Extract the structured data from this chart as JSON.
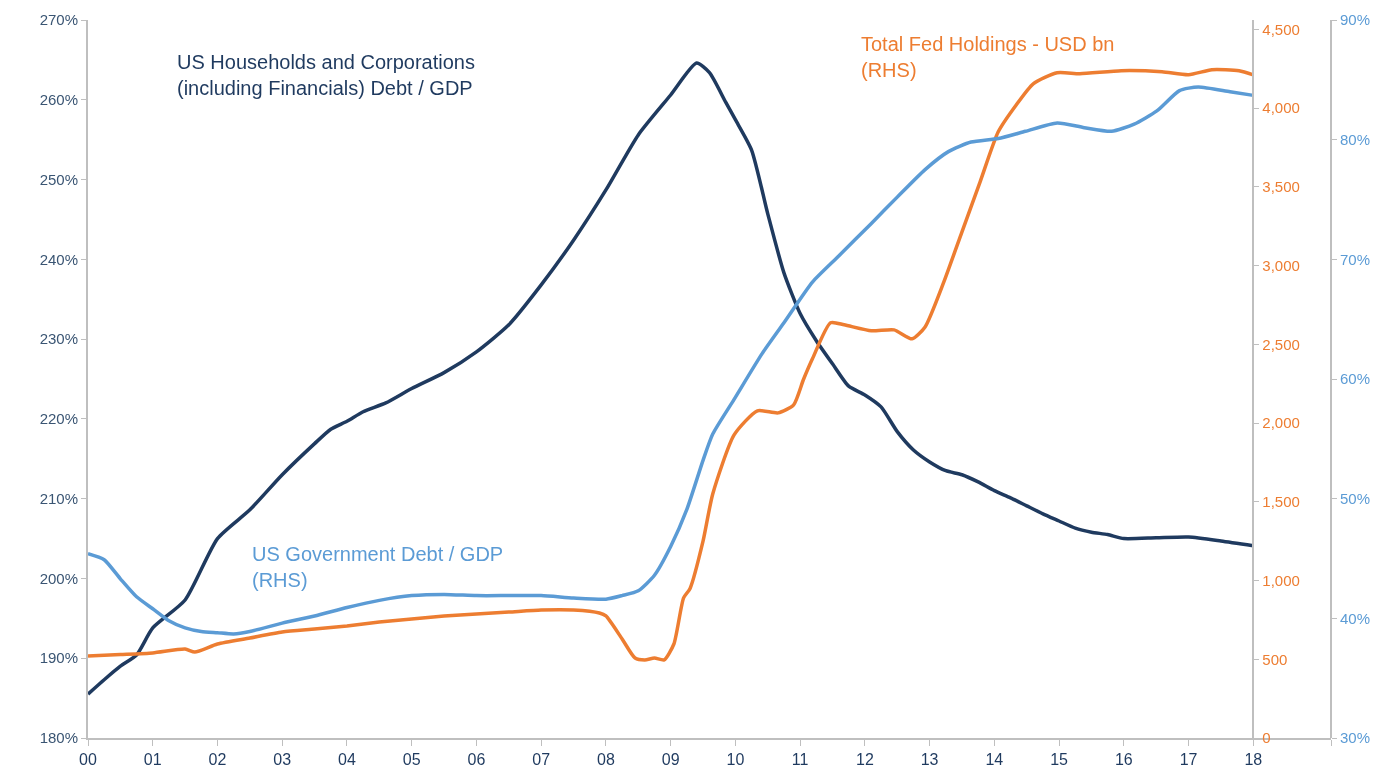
{
  "chart_data": {
    "type": "line",
    "xlim": [
      0,
      19.2
    ],
    "xticks": [
      {
        "value": 0,
        "label": "00"
      },
      {
        "value": 1,
        "label": "01"
      },
      {
        "value": 2,
        "label": "02"
      },
      {
        "value": 3,
        "label": "03"
      },
      {
        "value": 4,
        "label": "04"
      },
      {
        "value": 5,
        "label": "05"
      },
      {
        "value": 6,
        "label": "06"
      },
      {
        "value": 7,
        "label": "07"
      },
      {
        "value": 8,
        "label": "08"
      },
      {
        "value": 9,
        "label": "09"
      },
      {
        "value": 10,
        "label": "10"
      },
      {
        "value": 11,
        "label": "11"
      },
      {
        "value": 12,
        "label": "12"
      },
      {
        "value": 13,
        "label": "13"
      },
      {
        "value": 14,
        "label": "14"
      },
      {
        "value": 15,
        "label": "15"
      },
      {
        "value": 16,
        "label": "16"
      },
      {
        "value": 17,
        "label": "17"
      },
      {
        "value": 18,
        "label": "18"
      },
      {
        "value": 19.2,
        "label": null
      }
    ],
    "ylim": [
      180,
      270
    ],
    "yticks": [
      {
        "value": 180,
        "label": "180%"
      },
      {
        "value": 190,
        "label": "190%"
      },
      {
        "value": 200,
        "label": "200%"
      },
      {
        "value": 210,
        "label": "210%"
      },
      {
        "value": 220,
        "label": "220%"
      },
      {
        "value": 230,
        "label": "230%"
      },
      {
        "value": 240,
        "label": "240%"
      },
      {
        "value": 250,
        "label": "250%"
      },
      {
        "value": 260,
        "label": "260%"
      },
      {
        "value": 270,
        "label": "270%"
      }
    ],
    "y2lim": [
      0,
      4560
    ],
    "y2ticks": [
      0,
      {
        "value": 500,
        "label": "500"
      },
      {
        "value": 1000,
        "label": "1,000"
      },
      {
        "value": 1500,
        "label": "1,500"
      },
      {
        "value": 2000,
        "label": "2,000"
      },
      {
        "value": 2500,
        "label": "2,500"
      },
      {
        "value": 3000,
        "label": "3,000"
      },
      {
        "value": 3500,
        "label": "3,500"
      },
      {
        "value": 4000,
        "label": "4,000"
      },
      {
        "value": 4500,
        "label": "4,500"
      }
    ],
    "y3lim": [
      30,
      90
    ],
    "y3ticks": [
      {
        "value": 30,
        "label": "30%"
      },
      {
        "value": 40,
        "label": "40%"
      },
      {
        "value": 50,
        "label": "50%"
      },
      {
        "value": 60,
        "label": "60%"
      },
      {
        "value": 70,
        "label": "70%"
      },
      {
        "value": 80,
        "label": "80%"
      },
      {
        "value": 90,
        "label": "90%"
      }
    ],
    "grid": false,
    "marker": "none",
    "line_style": "solid",
    "series": [
      {
        "name": "US Households and Corporations\n(including Financials) Debt / GDP",
        "color": "#1f3a5f",
        "x": [
          0,
          0.25,
          0.5,
          0.75,
          1,
          1.5,
          2,
          2.5,
          3,
          3.5,
          3.75,
          4,
          4.25,
          4.6,
          5,
          5.5,
          6,
          6.5,
          7,
          7.5,
          8,
          8.5,
          9,
          9.4,
          9.6,
          9.85,
          10,
          10.25,
          10.5,
          10.75,
          11,
          11.25,
          11.5,
          11.75,
          12,
          12.25,
          12.5,
          12.75,
          13,
          13.25,
          13.5,
          13.75,
          14,
          14.25,
          14.5,
          14.75,
          15,
          15.25,
          15.5,
          15.75,
          16,
          16.5,
          17,
          17.5,
          18
        ],
        "values": [
          185.5,
          187.3,
          189,
          190.4,
          193.8,
          197.3,
          205,
          208.6,
          213,
          216.9,
          218.7,
          219.7,
          220.9,
          222,
          223.8,
          225.8,
          228.4,
          231.8,
          236.8,
          242.4,
          248.7,
          255.6,
          260.6,
          264.6,
          263.4,
          259.7,
          257.5,
          253.7,
          245.7,
          238.3,
          233.2,
          229.8,
          226.9,
          224.1,
          223,
          221.5,
          218.4,
          216.1,
          214.6,
          213.5,
          213,
          212.1,
          211,
          210.1,
          209.1,
          208.1,
          207.2,
          206.3,
          205.8,
          205.5,
          205,
          205.1,
          205.2,
          204.7,
          204.1
        ]
      },
      {
        "name": "Total Fed Holdings - USD bn\n(RHS)",
        "color": "#ed7d31",
        "axis": "y2",
        "x": [
          0,
          0.5,
          1,
          1.5,
          1.65,
          2,
          2.5,
          3,
          3.5,
          4,
          4.5,
          5,
          5.5,
          6,
          6.5,
          7,
          7.5,
          7.9,
          8,
          8.25,
          8.45,
          8.6,
          8.75,
          8.9,
          9.05,
          9.2,
          9.3,
          9.5,
          9.65,
          9.98,
          10.34,
          10.66,
          10.9,
          11.05,
          11.19,
          11.47,
          11.68,
          12.1,
          12.45,
          12.73,
          12.93,
          13.22,
          13.5,
          13.78,
          14.06,
          14.34,
          14.6,
          14.97,
          15.32,
          15.96,
          16.59,
          17,
          17.36,
          17.78,
          18
        ],
        "values": [
          521,
          530,
          540,
          565,
          546,
          597,
          635,
          673,
          692,
          712,
          737,
          756,
          775,
          788,
          800,
          813,
          813,
          794,
          775,
          629,
          508,
          496,
          508,
          496,
          597,
          890,
          950,
          1250,
          1550,
          1925,
          2078,
          2065,
          2116,
          2275,
          2408,
          2637,
          2624,
          2586,
          2592,
          2535,
          2611,
          2897,
          3215,
          3532,
          3850,
          4022,
          4155,
          4225,
          4219,
          4238,
          4231,
          4212,
          4244,
          4238,
          4212
        ]
      },
      {
        "name": "US Government Debt / GDP\n(RHS)",
        "color": "#5b9bd5",
        "axis": "y3",
        "x": [
          0,
          0.25,
          0.5,
          0.75,
          1,
          1.25,
          1.5,
          1.75,
          2,
          2.25,
          2.5,
          3,
          3.5,
          4,
          4.5,
          5,
          5.5,
          6,
          6.5,
          7,
          7.5,
          8,
          8.25,
          8.5,
          8.75,
          9,
          9.25,
          9.5,
          9.65,
          9.98,
          10.41,
          10.75,
          11.19,
          11.6,
          12.1,
          12.5,
          12.93,
          13.29,
          13.64,
          14.06,
          14.48,
          14.97,
          15.39,
          15.81,
          16.16,
          16.51,
          16.86,
          17.15,
          17.64,
          18
        ],
        "values": [
          45.4,
          44.9,
          43.3,
          41.8,
          40.8,
          39.8,
          39.2,
          38.9,
          38.8,
          38.7,
          38.9,
          39.6,
          40.2,
          40.9,
          41.5,
          41.9,
          42,
          41.9,
          41.9,
          41.9,
          41.7,
          41.6,
          41.9,
          42.3,
          43.6,
          46,
          49.1,
          53.2,
          55.4,
          58.3,
          62.1,
          64.7,
          68.1,
          70.3,
          73,
          75.2,
          77.5,
          79,
          79.8,
          80.1,
          80.7,
          81.4,
          81,
          80.7,
          81.3,
          82.4,
          84.1,
          84.4,
          84,
          83.7
        ]
      }
    ]
  }
}
